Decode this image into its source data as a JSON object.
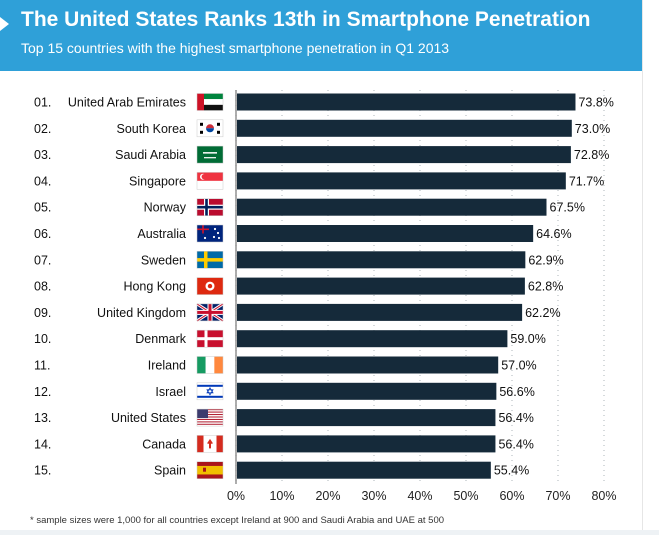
{
  "header": {
    "title": "The United States Ranks 13th in Smartphone Penetration",
    "subtitle": "Top 15 countries with the highest smartphone penetration in Q1 2013"
  },
  "chart_data": {
    "type": "bar",
    "orientation": "horizontal",
    "title": "The United States Ranks 13th in Smartphone Penetration",
    "subtitle": "Top 15 countries with the highest smartphone penetration in Q1 2013",
    "ranks": [
      "01.",
      "02.",
      "03.",
      "04.",
      "05.",
      "06.",
      "07.",
      "08.",
      "09.",
      "10.",
      "11.",
      "12.",
      "13.",
      "14.",
      "15."
    ],
    "categories": [
      "United Arab Emirates",
      "South Korea",
      "Saudi Arabia",
      "Singapore",
      "Norway",
      "Australia",
      "Sweden",
      "Hong Kong",
      "United Kingdom",
      "Denmark",
      "Ireland",
      "Israel",
      "United States",
      "Canada",
      "Spain"
    ],
    "flags": [
      "flag-uae",
      "flag-south-korea",
      "flag-saudi-arabia",
      "flag-singapore",
      "flag-norway",
      "flag-australia",
      "flag-sweden",
      "flag-hong-kong",
      "flag-united-kingdom",
      "flag-denmark",
      "flag-ireland",
      "flag-israel",
      "flag-united-states",
      "flag-canada",
      "flag-spain"
    ],
    "values": [
      73.8,
      73.0,
      72.8,
      71.7,
      67.5,
      64.6,
      62.9,
      62.8,
      62.2,
      59.0,
      57.0,
      56.6,
      56.4,
      56.4,
      55.4
    ],
    "value_labels": [
      "73.8%",
      "73.0%",
      "72.8%",
      "71.7%",
      "67.5%",
      "64.6%",
      "62.9%",
      "62.8%",
      "62.2%",
      "59.0%",
      "57.0%",
      "56.6%",
      "56.4%",
      "56.4%",
      "55.4%"
    ],
    "xlim": [
      0,
      80
    ],
    "x_ticks": [
      "0%",
      "10%",
      "20%",
      "30%",
      "40%",
      "50%",
      "60%",
      "70%",
      "80%"
    ],
    "xlabel": "",
    "ylabel": "",
    "grid": "vertical dotted",
    "bar_color": "#152a3a"
  },
  "footnote": "* sample sizes were 1,000 for all countries except Ireland at 900 and Saudi Arabia and UAE at 500"
}
